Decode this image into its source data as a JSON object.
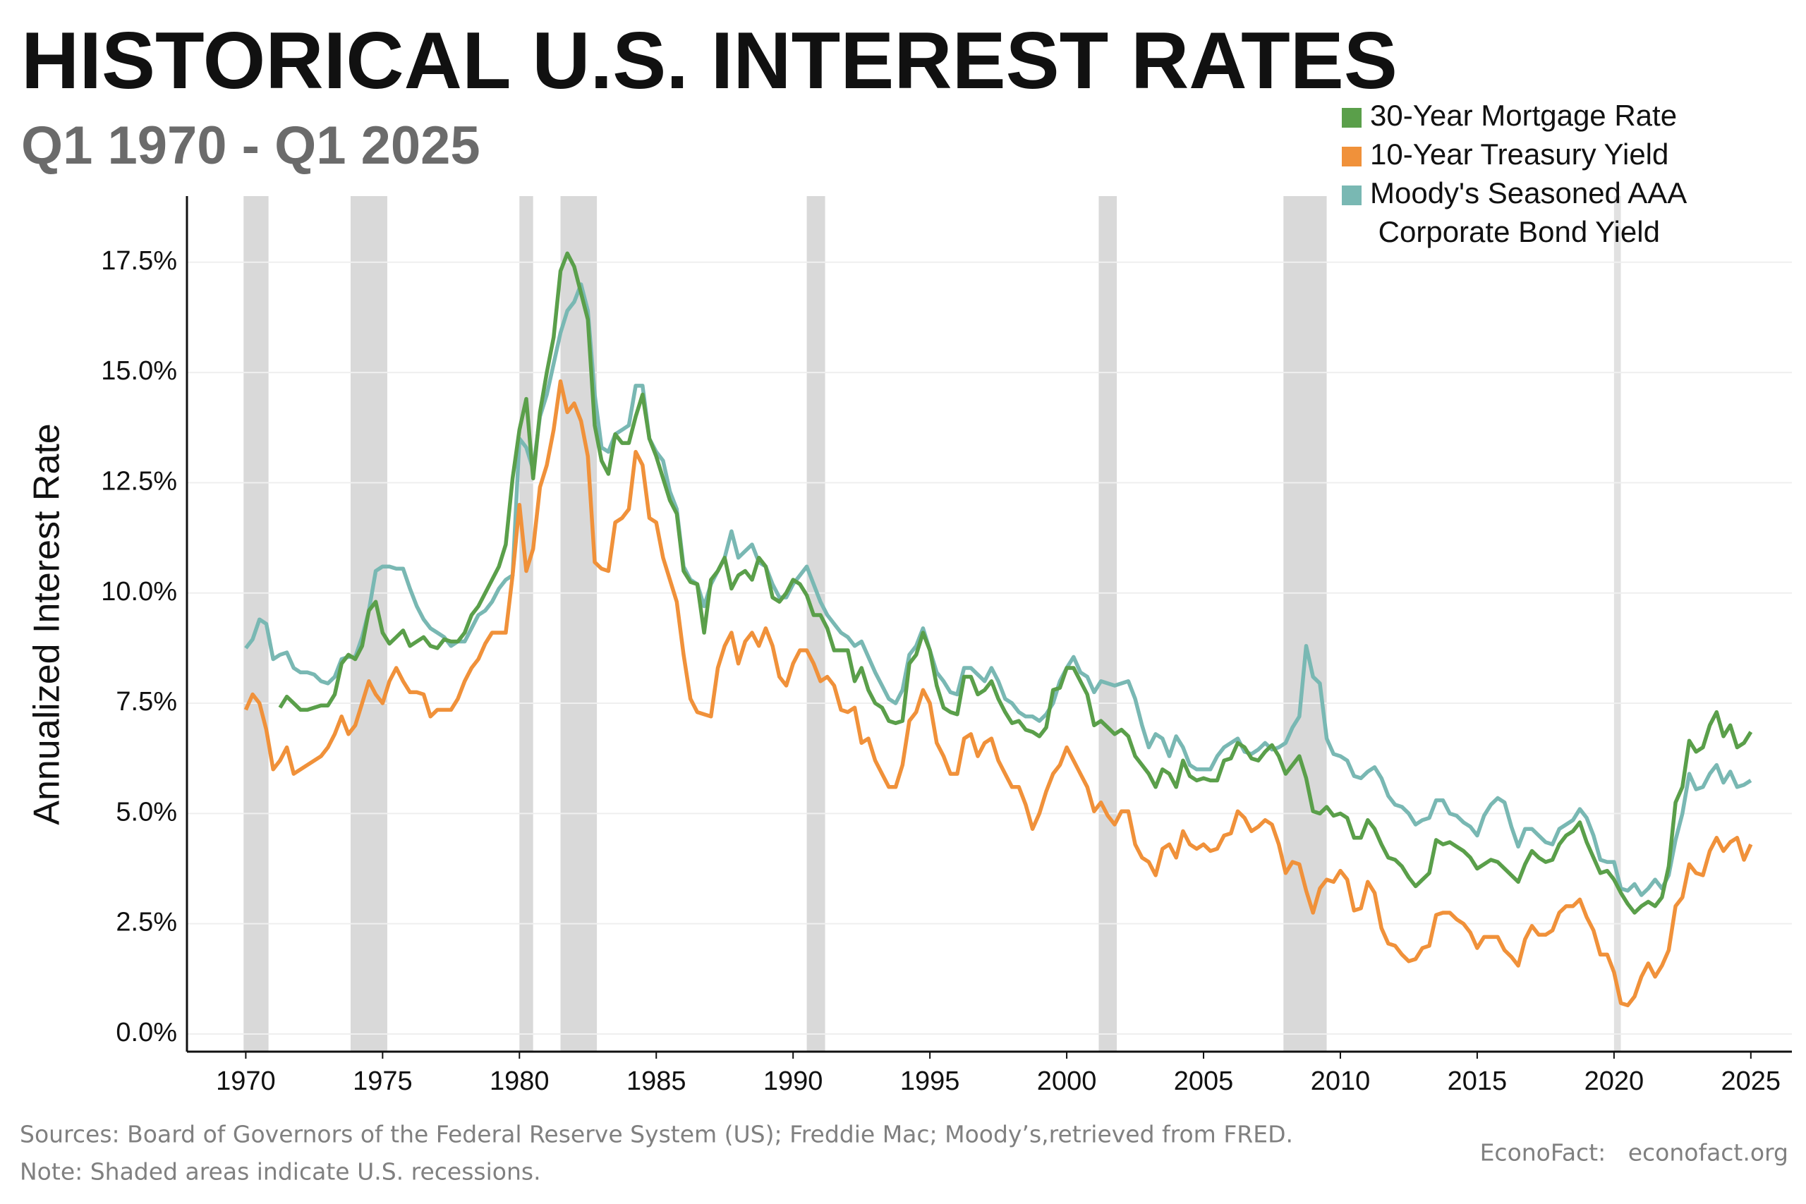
{
  "chart_data": {
    "type": "line",
    "title": "HISTORICAL U.S. INTEREST RATES",
    "subtitle": "Q1 1970 - Q1 2025",
    "y_label": "Annualized Interest Rate",
    "sources": "Sources: Board of Governors of the Federal Reserve System (US); Freddie Mac; Moody’s,retrieved from FRED.",
    "note": "Note: Shaded areas indicate U.S. recessions.",
    "credit": "EconoFact:   econofact.org",
    "xlim": [
      1967.85,
      2026.5
    ],
    "ylim": [
      -0.4,
      19
    ],
    "xticks": [
      1970,
      1975,
      1980,
      1985,
      1990,
      1995,
      2000,
      2005,
      2010,
      2015,
      2020,
      2025
    ],
    "yticks": [
      {
        "value": 0,
        "label": "0.0%"
      },
      {
        "value": 2.5,
        "label": "2.5%"
      },
      {
        "value": 5,
        "label": "5.0%"
      },
      {
        "value": 7.5,
        "label": "7.5%"
      },
      {
        "value": 10,
        "label": "10.0%"
      },
      {
        "value": 12.5,
        "label": "12.5%"
      },
      {
        "value": 15,
        "label": "15.0%"
      },
      {
        "value": 17.5,
        "label": "17.5%"
      }
    ],
    "grid": true,
    "legend": "top-right",
    "recession_color": "#d9d9d9",
    "recessions": [
      [
        1969.92,
        1970.83
      ],
      [
        1973.83,
        1975.17
      ],
      [
        1980.0,
        1980.5
      ],
      [
        1981.5,
        1982.83
      ],
      [
        1990.5,
        1991.17
      ],
      [
        2001.17,
        2001.83
      ],
      [
        2007.92,
        2009.5
      ],
      [
        2020.0,
        2020.25
      ]
    ],
    "x": [
      1970,
      1970.25,
      1970.5,
      1970.75,
      1971,
      1971.25,
      1971.5,
      1971.75,
      1972,
      1972.25,
      1972.5,
      1972.75,
      1973,
      1973.25,
      1973.5,
      1973.75,
      1974,
      1974.25,
      1974.5,
      1974.75,
      1975,
      1975.25,
      1975.5,
      1975.75,
      1976,
      1976.25,
      1976.5,
      1976.75,
      1977,
      1977.25,
      1977.5,
      1977.75,
      1978,
      1978.25,
      1978.5,
      1978.75,
      1979,
      1979.25,
      1979.5,
      1979.75,
      1980,
      1980.25,
      1980.5,
      1980.75,
      1981,
      1981.25,
      1981.5,
      1981.75,
      1982,
      1982.25,
      1982.5,
      1982.75,
      1983,
      1983.25,
      1983.5,
      1983.75,
      1984,
      1984.25,
      1984.5,
      1984.75,
      1985,
      1985.25,
      1985.5,
      1985.75,
      1986,
      1986.25,
      1986.5,
      1986.75,
      1987,
      1987.25,
      1987.5,
      1987.75,
      1988,
      1988.25,
      1988.5,
      1988.75,
      1989,
      1989.25,
      1989.5,
      1989.75,
      1990,
      1990.25,
      1990.5,
      1990.75,
      1991,
      1991.25,
      1991.5,
      1991.75,
      1992,
      1992.25,
      1992.5,
      1992.75,
      1993,
      1993.25,
      1993.5,
      1993.75,
      1994,
      1994.25,
      1994.5,
      1994.75,
      1995,
      1995.25,
      1995.5,
      1995.75,
      1996,
      1996.25,
      1996.5,
      1996.75,
      1997,
      1997.25,
      1997.5,
      1997.75,
      1998,
      1998.25,
      1998.5,
      1998.75,
      1999,
      1999.25,
      1999.5,
      1999.75,
      2000,
      2000.25,
      2000.5,
      2000.75,
      2001,
      2001.25,
      2001.5,
      2001.75,
      2002,
      2002.25,
      2002.5,
      2002.75,
      2003,
      2003.25,
      2003.5,
      2003.75,
      2004,
      2004.25,
      2004.5,
      2004.75,
      2005,
      2005.25,
      2005.5,
      2005.75,
      2006,
      2006.25,
      2006.5,
      2006.75,
      2007,
      2007.25,
      2007.5,
      2007.75,
      2008,
      2008.25,
      2008.5,
      2008.75,
      2009,
      2009.25,
      2009.5,
      2009.75,
      2010,
      2010.25,
      2010.5,
      2010.75,
      2011,
      2011.25,
      2011.5,
      2011.75,
      2012,
      2012.25,
      2012.5,
      2012.75,
      2013,
      2013.25,
      2013.5,
      2013.75,
      2014,
      2014.25,
      2014.5,
      2014.75,
      2015,
      2015.25,
      2015.5,
      2015.75,
      2016,
      2016.25,
      2016.5,
      2016.75,
      2017,
      2017.25,
      2017.5,
      2017.75,
      2018,
      2018.25,
      2018.5,
      2018.75,
      2019,
      2019.25,
      2019.5,
      2019.75,
      2020,
      2020.25,
      2020.5,
      2020.75,
      2021,
      2021.25,
      2021.5,
      2021.75,
      2022,
      2022.25,
      2022.5,
      2022.75,
      2023,
      2023.25,
      2023.5,
      2023.75,
      2024,
      2024.25,
      2024.5,
      2024.75,
      2025
    ],
    "series": [
      {
        "name": "30-Year Mortgage Rate",
        "color": "#5a9f4a",
        "values": [
          null,
          null,
          null,
          null,
          null,
          7.4,
          7.65,
          7.5,
          7.35,
          7.35,
          7.4,
          7.45,
          7.45,
          7.7,
          8.4,
          8.6,
          8.5,
          8.8,
          9.6,
          9.8,
          9.1,
          8.85,
          9.0,
          9.15,
          8.8,
          8.9,
          9.0,
          8.8,
          8.75,
          8.95,
          8.9,
          8.9,
          9.1,
          9.5,
          9.7,
          10.0,
          10.3,
          10.6,
          11.1,
          12.6,
          13.7,
          14.4,
          12.6,
          14.1,
          15.0,
          15.8,
          17.3,
          17.7,
          17.4,
          16.8,
          16.2,
          13.8,
          13.0,
          12.7,
          13.6,
          13.4,
          13.4,
          14.0,
          14.5,
          13.5,
          13.1,
          12.6,
          12.1,
          11.8,
          10.5,
          10.25,
          10.2,
          9.1,
          10.3,
          10.5,
          10.8,
          10.1,
          10.4,
          10.5,
          10.3,
          10.8,
          10.6,
          9.9,
          9.8,
          10.0,
          10.3,
          10.2,
          9.95,
          9.5,
          9.5,
          9.2,
          8.7,
          8.7,
          8.7,
          8.0,
          8.3,
          7.8,
          7.5,
          7.4,
          7.1,
          7.05,
          7.1,
          8.4,
          8.6,
          9.1,
          8.7,
          7.9,
          7.4,
          7.3,
          7.25,
          8.1,
          8.1,
          7.7,
          7.8,
          8.0,
          7.6,
          7.3,
          7.05,
          7.1,
          6.9,
          6.85,
          6.75,
          6.95,
          7.8,
          7.85,
          8.3,
          8.3,
          8.0,
          7.7,
          7.0,
          7.1,
          6.95,
          6.8,
          6.9,
          6.75,
          6.3,
          6.1,
          5.9,
          5.6,
          6.0,
          5.9,
          5.6,
          6.2,
          5.85,
          5.75,
          5.8,
          5.75,
          5.75,
          6.2,
          6.25,
          6.6,
          6.5,
          6.25,
          6.2,
          6.4,
          6.55,
          6.3,
          5.9,
          6.1,
          6.3,
          5.8,
          5.05,
          5.0,
          5.15,
          4.95,
          5.0,
          4.9,
          4.45,
          4.45,
          4.85,
          4.65,
          4.3,
          4.0,
          3.95,
          3.8,
          3.55,
          3.35,
          3.5,
          3.65,
          4.4,
          4.3,
          4.35,
          4.25,
          4.15,
          4.0,
          3.75,
          3.85,
          3.95,
          3.9,
          3.75,
          3.6,
          3.45,
          3.85,
          4.15,
          4.0,
          3.9,
          3.95,
          4.3,
          4.5,
          4.6,
          4.8,
          4.35,
          4.0,
          3.65,
          3.7,
          3.5,
          3.2,
          2.95,
          2.75,
          2.9,
          3.0,
          2.9,
          3.1,
          3.8,
          5.25,
          5.6,
          6.65,
          6.4,
          6.5,
          7.0,
          7.3,
          6.75,
          7.0,
          6.5,
          6.6,
          6.85
        ]
      },
      {
        "name": "10-Year Treasury Yield",
        "color": "#f0913a",
        "values": [
          7.35,
          7.7,
          7.5,
          6.9,
          6.0,
          6.2,
          6.5,
          5.9,
          6.0,
          6.1,
          6.2,
          6.3,
          6.5,
          6.8,
          7.2,
          6.8,
          7.0,
          7.5,
          8.0,
          7.7,
          7.5,
          8.0,
          8.3,
          8.0,
          7.75,
          7.75,
          7.7,
          7.2,
          7.35,
          7.35,
          7.35,
          7.6,
          8.0,
          8.3,
          8.5,
          8.85,
          9.1,
          9.1,
          9.1,
          10.4,
          12.0,
          10.5,
          11.0,
          12.4,
          12.9,
          13.7,
          14.8,
          14.1,
          14.3,
          13.9,
          13.1,
          10.7,
          10.55,
          10.5,
          11.6,
          11.7,
          11.9,
          13.2,
          12.9,
          11.7,
          11.6,
          10.8,
          10.3,
          9.8,
          8.6,
          7.6,
          7.3,
          7.25,
          7.2,
          8.3,
          8.8,
          9.1,
          8.4,
          8.9,
          9.1,
          8.8,
          9.2,
          8.8,
          8.1,
          7.9,
          8.4,
          8.7,
          8.7,
          8.4,
          8.0,
          8.1,
          7.9,
          7.35,
          7.3,
          7.4,
          6.6,
          6.7,
          6.2,
          5.9,
          5.6,
          5.6,
          6.1,
          7.1,
          7.3,
          7.8,
          7.5,
          6.6,
          6.3,
          5.9,
          5.9,
          6.7,
          6.8,
          6.3,
          6.6,
          6.7,
          6.2,
          5.9,
          5.6,
          5.6,
          5.2,
          4.65,
          5.0,
          5.5,
          5.9,
          6.1,
          6.5,
          6.2,
          5.9,
          5.6,
          5.05,
          5.25,
          4.95,
          4.75,
          5.05,
          5.05,
          4.3,
          4.0,
          3.9,
          3.6,
          4.2,
          4.3,
          4.0,
          4.6,
          4.3,
          4.2,
          4.3,
          4.15,
          4.2,
          4.5,
          4.55,
          5.05,
          4.9,
          4.6,
          4.7,
          4.85,
          4.75,
          4.3,
          3.65,
          3.9,
          3.85,
          3.25,
          2.75,
          3.3,
          3.5,
          3.45,
          3.7,
          3.5,
          2.8,
          2.85,
          3.45,
          3.2,
          2.4,
          2.05,
          2.0,
          1.8,
          1.65,
          1.7,
          1.95,
          2.0,
          2.7,
          2.75,
          2.75,
          2.6,
          2.5,
          2.3,
          1.95,
          2.2,
          2.2,
          2.2,
          1.9,
          1.75,
          1.55,
          2.15,
          2.45,
          2.25,
          2.25,
          2.35,
          2.75,
          2.9,
          2.9,
          3.05,
          2.65,
          2.35,
          1.8,
          1.8,
          1.4,
          0.7,
          0.65,
          0.85,
          1.3,
          1.6,
          1.3,
          1.55,
          1.9,
          2.9,
          3.1,
          3.85,
          3.65,
          3.6,
          4.15,
          4.45,
          4.15,
          4.35,
          4.45,
          3.95,
          4.3
        ]
      },
      {
        "name": "Moody's Seasoned AAA Corporate Bond Yield",
        "color": "#79b8b3",
        "values": [
          8.75,
          8.95,
          9.4,
          9.3,
          8.5,
          8.6,
          8.65,
          8.3,
          8.2,
          8.2,
          8.15,
          8.0,
          7.95,
          8.1,
          8.5,
          8.55,
          8.55,
          9.0,
          9.6,
          10.5,
          10.6,
          10.6,
          10.55,
          10.55,
          10.1,
          9.7,
          9.4,
          9.2,
          9.1,
          9.0,
          8.8,
          8.9,
          8.9,
          9.2,
          9.5,
          9.6,
          9.8,
          10.1,
          10.3,
          10.4,
          13.5,
          13.3,
          12.8,
          14.0,
          14.5,
          15.2,
          15.9,
          16.4,
          16.6,
          17.0,
          16.4,
          14.5,
          13.3,
          13.2,
          13.6,
          13.7,
          13.8,
          14.7,
          14.7,
          13.5,
          13.2,
          13.0,
          12.3,
          11.9,
          10.6,
          10.3,
          10.2,
          9.7,
          10.2,
          10.5,
          10.8,
          11.4,
          10.8,
          10.95,
          11.1,
          10.7,
          10.6,
          10.2,
          9.9,
          9.9,
          10.2,
          10.4,
          10.6,
          10.2,
          9.8,
          9.5,
          9.3,
          9.1,
          9.0,
          8.8,
          8.9,
          8.55,
          8.2,
          7.9,
          7.6,
          7.5,
          7.8,
          8.6,
          8.8,
          9.2,
          8.7,
          8.2,
          8.0,
          7.75,
          7.7,
          8.3,
          8.3,
          8.15,
          8.0,
          8.3,
          8.0,
          7.6,
          7.5,
          7.3,
          7.2,
          7.2,
          7.1,
          7.25,
          7.5,
          8.0,
          8.3,
          8.55,
          8.2,
          8.1,
          7.75,
          8.0,
          7.95,
          7.9,
          7.95,
          8.0,
          7.6,
          7.0,
          6.5,
          6.8,
          6.7,
          6.3,
          6.75,
          6.5,
          6.1,
          6.0,
          6.0,
          6.0,
          6.3,
          6.5,
          6.6,
          6.7,
          6.4,
          6.35,
          6.45,
          6.6,
          6.45,
          6.5,
          6.6,
          6.95,
          7.2,
          8.8,
          8.1,
          7.95,
          6.7,
          6.35,
          6.3,
          6.2,
          5.85,
          5.8,
          5.95,
          6.05,
          5.8,
          5.4,
          5.2,
          5.15,
          5.0,
          4.75,
          4.85,
          4.9,
          5.3,
          5.3,
          5.0,
          4.95,
          4.8,
          4.7,
          4.5,
          4.95,
          5.2,
          5.35,
          5.25,
          4.7,
          4.25,
          4.65,
          4.65,
          4.5,
          4.35,
          4.3,
          4.65,
          4.75,
          4.85,
          5.1,
          4.9,
          4.5,
          3.95,
          3.9,
          3.9,
          3.3,
          3.25,
          3.4,
          3.15,
          3.3,
          3.5,
          3.3,
          3.6,
          4.4,
          5.0,
          5.9,
          5.55,
          5.6,
          5.9,
          6.1,
          5.7,
          5.95,
          5.6,
          5.65,
          5.75
        ]
      }
    ]
  }
}
